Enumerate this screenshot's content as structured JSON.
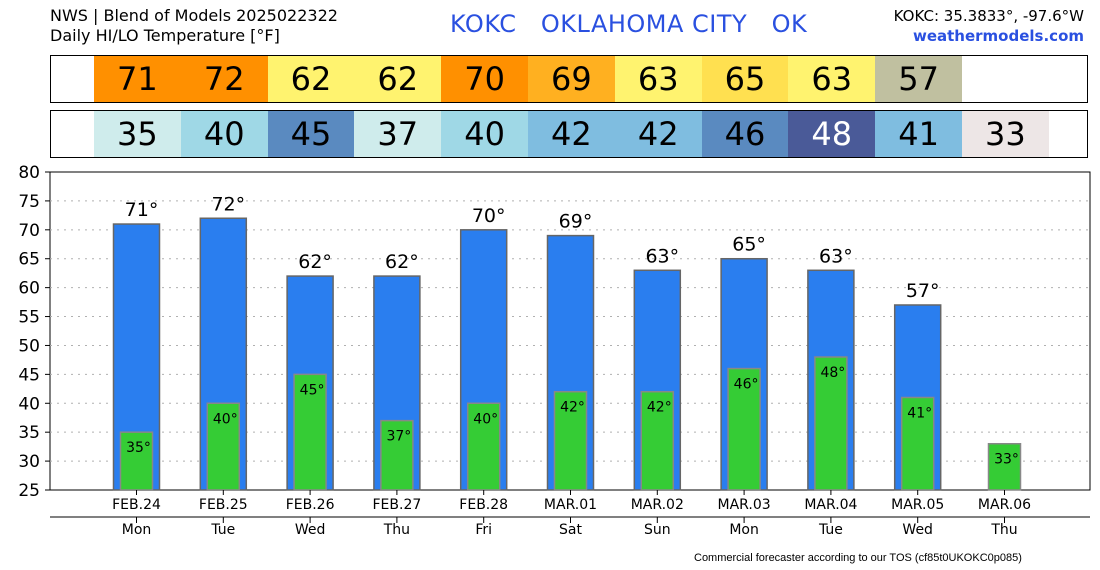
{
  "header": {
    "line1": "NWS | Blend of Models 2025022322",
    "line2": "Daily HI/LO Temperature [°F]",
    "station": "KOKC   OKLAHOMA CITY   OK",
    "coords": "KOKC: 35.3833°, -97.6°W",
    "site": "weathermodels.com"
  },
  "high_strip": [
    {
      "value": "71",
      "color": "#ff9000"
    },
    {
      "value": "72",
      "color": "#ff9000"
    },
    {
      "value": "62",
      "color": "#fff36f"
    },
    {
      "value": "62",
      "color": "#fff36f"
    },
    {
      "value": "70",
      "color": "#ff9000"
    },
    {
      "value": "69",
      "color": "#ffb020"
    },
    {
      "value": "63",
      "color": "#fff36f"
    },
    {
      "value": "65",
      "color": "#ffe050"
    },
    {
      "value": "63",
      "color": "#fff36f"
    },
    {
      "value": "57",
      "color": "#c0c0a0"
    }
  ],
  "low_strip": [
    {
      "value": "35",
      "color": "#cfecec",
      "text": "#000000"
    },
    {
      "value": "40",
      "color": "#9fd8e6",
      "text": "#000000"
    },
    {
      "value": "45",
      "color": "#5a8ac0",
      "text": "#000000"
    },
    {
      "value": "37",
      "color": "#cfecec",
      "text": "#000000"
    },
    {
      "value": "40",
      "color": "#9fd8e6",
      "text": "#000000"
    },
    {
      "value": "42",
      "color": "#7fbde0",
      "text": "#000000"
    },
    {
      "value": "42",
      "color": "#7fbde0",
      "text": "#000000"
    },
    {
      "value": "46",
      "color": "#5a8ac0",
      "text": "#000000"
    },
    {
      "value": "48",
      "color": "#4a5a98",
      "text": "#ffffff"
    },
    {
      "value": "41",
      "color": "#7fbde0",
      "text": "#000000"
    },
    {
      "value": "33",
      "color": "#ede6e6",
      "text": "#000000"
    }
  ],
  "chart_data": {
    "type": "bar",
    "ylim": [
      25,
      80
    ],
    "yticks": [
      "25",
      "30",
      "35",
      "40",
      "45",
      "50",
      "55",
      "60",
      "65",
      "70",
      "75",
      "80"
    ],
    "grid": true,
    "categories": [
      "FEB.24",
      "FEB.25",
      "FEB.26",
      "FEB.27",
      "FEB.28",
      "MAR.01",
      "MAR.02",
      "MAR.03",
      "MAR.04",
      "MAR.05",
      "MAR.06"
    ],
    "weekdays": [
      "Mon",
      "Tue",
      "Wed",
      "Thu",
      "Fri",
      "Sat",
      "Sun",
      "Mon",
      "Tue",
      "Wed",
      "Thu"
    ],
    "series": [
      {
        "values": [
          71,
          72,
          62,
          62,
          70,
          69,
          63,
          65,
          63,
          57,
          null
        ],
        "labels": [
          "71°",
          "72°",
          "62°",
          "62°",
          "70°",
          "69°",
          "63°",
          "65°",
          "63°",
          "57°",
          ""
        ]
      },
      {
        "values": [
          35,
          40,
          45,
          37,
          40,
          42,
          42,
          46,
          48,
          41,
          33
        ],
        "labels": [
          "35°",
          "40°",
          "45°",
          "37°",
          "40°",
          "42°",
          "42°",
          "46°",
          "48°",
          "41°",
          "33°"
        ]
      }
    ],
    "colors": {
      "high": "#2a7eef",
      "low": "#35cc35"
    }
  },
  "footer": "Commercial forecaster according to our TOS (cf85t0UKOKC0p085)"
}
